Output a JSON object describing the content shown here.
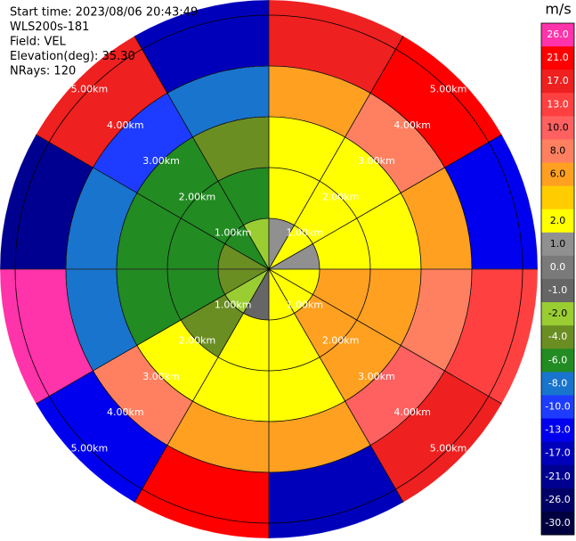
{
  "chart_data": {
    "type": "ppi",
    "header": [
      "Start time: 2023/08/06 20:43:49",
      "WLS200s-181",
      "Field: VEL",
      "Elevation(deg): 35.30",
      "NRays: 120"
    ],
    "colorbar_label": "m/s",
    "azimuth_edges": [
      0,
      30,
      60,
      90,
      120,
      150,
      180,
      210,
      240,
      270,
      300,
      330,
      360
    ],
    "range_edges": [
      0,
      1,
      2,
      3,
      4,
      5.3
    ],
    "rings": [
      {
        "value": 1,
        "label": "1.00km"
      },
      {
        "value": 2,
        "label": "2.00km"
      },
      {
        "value": 3,
        "label": "3.00km"
      },
      {
        "value": 4,
        "label": "4.00km"
      },
      {
        "value": 5,
        "label": "5.00km"
      }
    ],
    "values": [
      [
        1,
        2,
        2,
        6,
        17
      ],
      [
        2,
        2,
        2,
        8,
        21
      ],
      [
        1,
        2,
        2,
        6,
        -13
      ],
      [
        2,
        6,
        6,
        8,
        13
      ],
      [
        2,
        6,
        6,
        10,
        17
      ],
      [
        2,
        2,
        2,
        6,
        -17
      ],
      [
        -1,
        2,
        2,
        6,
        21
      ],
      [
        -2,
        -4,
        2,
        8,
        -13
      ],
      [
        -4,
        -6,
        -6,
        -8,
        26
      ],
      [
        -4,
        -6,
        -6,
        -8,
        -21
      ],
      [
        -6,
        -6,
        -6,
        -10,
        17
      ],
      [
        -2,
        -6,
        -4,
        -8,
        -17
      ]
    ],
    "colorbar": {
      "ticks": [
        {
          "value": 26,
          "label": "26.0"
        },
        {
          "value": 21,
          "label": "21.0"
        },
        {
          "value": 17,
          "label": "17.0"
        },
        {
          "value": 13,
          "label": "13.0"
        },
        {
          "value": 10,
          "label": "10.0"
        },
        {
          "value": 8,
          "label": "8.0"
        },
        {
          "value": 6,
          "label": "6.0"
        },
        null,
        {
          "value": 2,
          "label": "2.0"
        },
        {
          "value": 1,
          "label": "1.0"
        },
        {
          "value": 0,
          "label": "0.0"
        },
        {
          "value": -1,
          "label": "-1.0"
        },
        {
          "value": -2,
          "label": "-2.0"
        },
        {
          "value": -4,
          "label": "-4.0"
        },
        {
          "value": -6,
          "label": "-6.0"
        },
        {
          "value": -8,
          "label": "-8.0"
        },
        {
          "value": -10,
          "label": "-10.0"
        },
        {
          "value": -13,
          "label": "-13.0"
        },
        {
          "value": -17,
          "label": "-17.0"
        },
        {
          "value": -21,
          "label": "-21.0"
        },
        {
          "value": -26,
          "label": "-26.0"
        },
        {
          "value": -30,
          "label": "-30.0"
        }
      ],
      "colors": [
        "#ff33aa",
        "#ff0000",
        "#ee2020",
        "#ff4040",
        "#ff6060",
        "#ff8060",
        "#ffa020",
        "#ffcc00",
        "#ffff00",
        "#909090",
        "#7a7a7a",
        "#666666",
        "#9acd32",
        "#6b8e23",
        "#228b22",
        "#1874cd",
        "#1e3cff",
        "#0000ee",
        "#0000bb",
        "#000090",
        "#000066",
        "#000040"
      ]
    }
  }
}
